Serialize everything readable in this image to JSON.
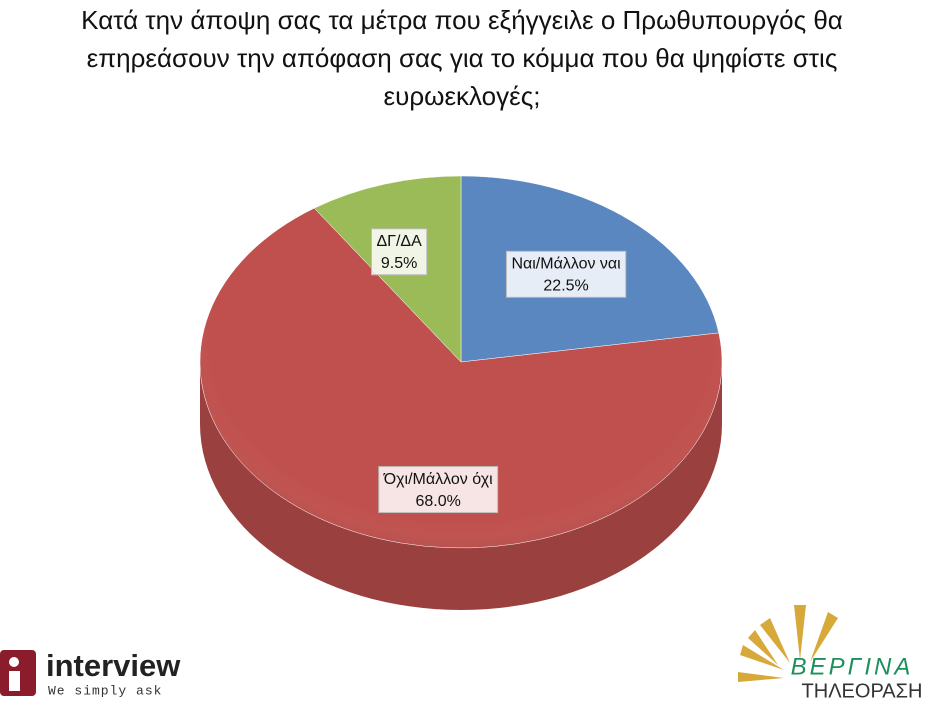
{
  "chart_data": {
    "type": "pie",
    "title": "Κατά την άποψη σας τα μέτρα που εξήγγειλε ο Πρωθυπουργός θα επηρεάσουν την απόφαση σας για το κόμμα που θα ψηφίστε στις ευρωεκλογές;",
    "categories": [
      "Ναι/Μάλλον ναι",
      "Όχι/Μάλλον όχι",
      "ΔΓ/ΔΑ"
    ],
    "values": [
      22.5,
      68.0,
      9.5
    ],
    "value_labels": [
      "22.5%",
      "68.0%",
      "9.5%"
    ],
    "colors": [
      "#5b87c0",
      "#c0504d",
      "#9bbb59"
    ]
  },
  "logos": {
    "left_name": "interview",
    "left_tagline": "We simply ask",
    "right_name": "ΒΕΡΓΙΝΑ",
    "right_sub": "ΤΗΛΕΟΡΑΣΗ"
  }
}
